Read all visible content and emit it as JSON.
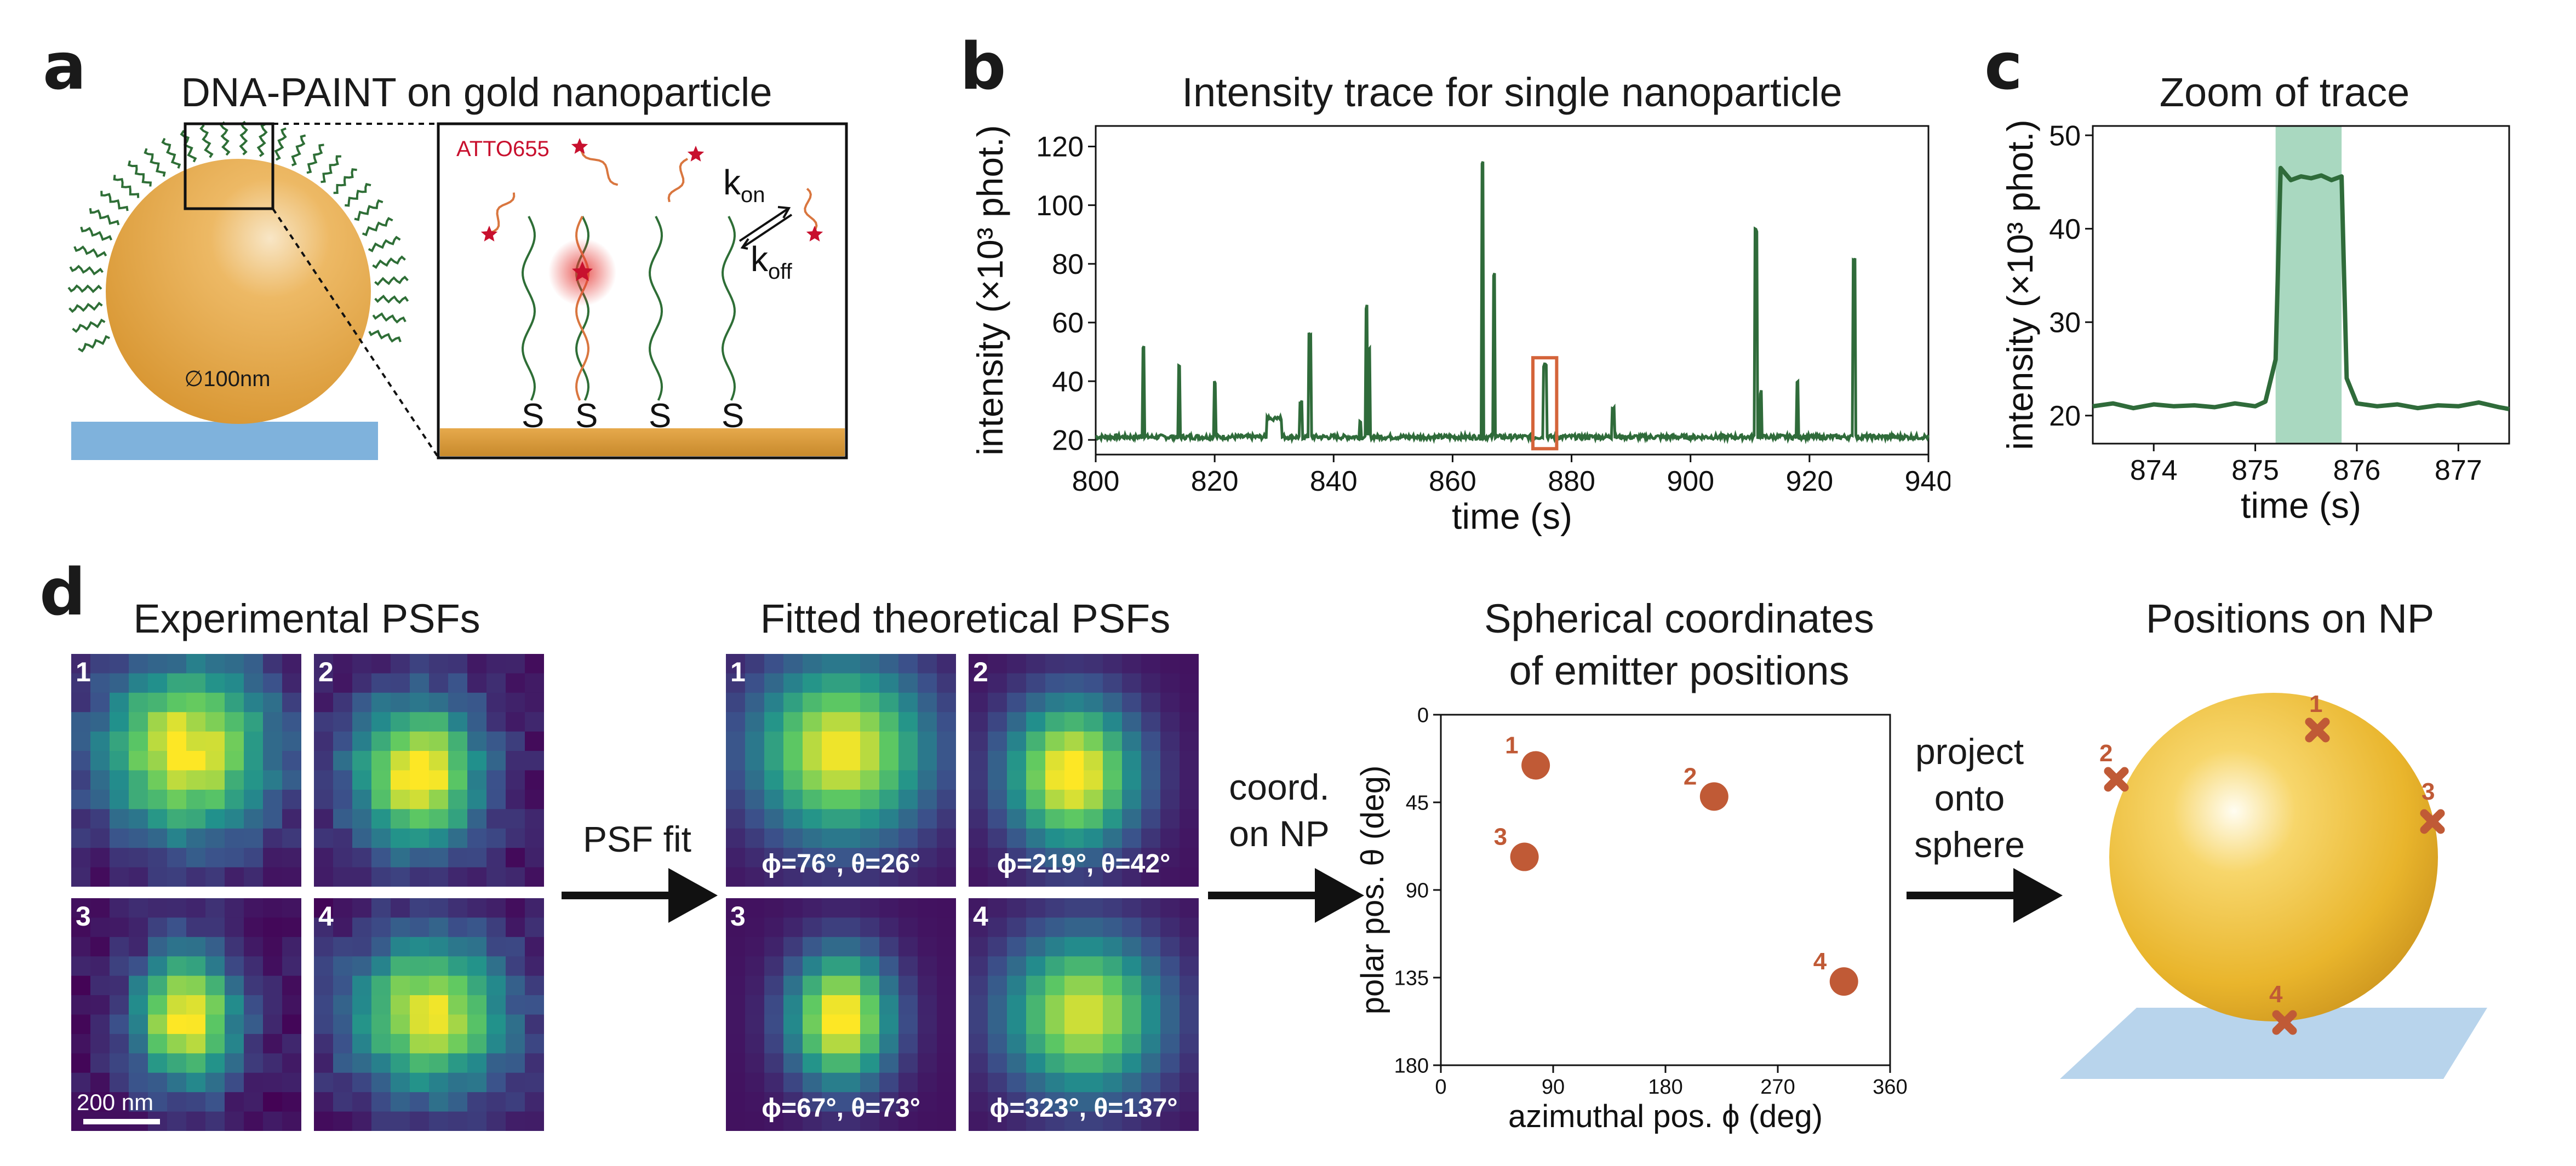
{
  "panel_labels": {
    "a": "a",
    "b": "b",
    "c": "c",
    "d": "d"
  },
  "panel_a": {
    "title": "DNA-PAINT on gold nanoparticle",
    "diameter_label": "∅100nm",
    "dye_label": "ATTO655",
    "k_on": "k",
    "k_on_sub": "on",
    "k_off": "k",
    "k_off_sub": "off",
    "anchor_label": "S",
    "colors": {
      "gold": "#E3A03A",
      "substrate": "#7FB2DC",
      "dna": "#2E6E36",
      "imager": "#D9763F",
      "dye": "#C8102E"
    }
  },
  "panel_b": {
    "title": "Intensity trace for single nanoparticle",
    "chart_data": {
      "type": "line",
      "title": "Intensity trace for single nanoparticle",
      "xlabel": "time (s)",
      "ylabel": "intensity (×10³ phot.)",
      "xlim": [
        800,
        940
      ],
      "ylim": [
        15,
        127
      ],
      "xticks": [
        800,
        820,
        840,
        860,
        880,
        900,
        920,
        940
      ],
      "yticks": [
        20,
        40,
        60,
        80,
        100,
        120
      ],
      "baseline": 21,
      "series": [
        {
          "color": "#2F6B3A",
          "events": [
            {
              "t": 808,
              "peak": 52
            },
            {
              "t": 814,
              "peak": 46
            },
            {
              "t": 820,
              "peak": 40
            },
            {
              "t": 830,
              "peak": 28,
              "width": 2.5
            },
            {
              "t": 834.5,
              "peak": 34
            },
            {
              "t": 836,
              "peak": 57
            },
            {
              "t": 844.5,
              "peak": 27
            },
            {
              "t": 845.5,
              "peak": 66
            },
            {
              "t": 846,
              "peak": 52
            },
            {
              "t": 865,
              "peak": 115
            },
            {
              "t": 867,
              "peak": 77
            },
            {
              "t": 875.5,
              "peak": 46,
              "width": 0.6
            },
            {
              "t": 887,
              "peak": 31
            },
            {
              "t": 911,
              "peak": 92
            },
            {
              "t": 911.8,
              "peak": 37
            },
            {
              "t": 918,
              "peak": 40
            },
            {
              "t": 927.5,
              "peak": 82
            }
          ]
        }
      ],
      "highlight_box": {
        "x": [
          873.5,
          877.5
        ],
        "y": [
          17,
          48
        ],
        "color": "#D4643A"
      }
    }
  },
  "panel_c": {
    "title": "Zoom of trace",
    "chart_data": {
      "type": "line",
      "title": "Zoom of trace",
      "xlabel": "time (s)",
      "ylabel": "intensity (×10³ phot.)",
      "xlim": [
        873.4,
        877.5
      ],
      "ylim": [
        17,
        51
      ],
      "xticks": [
        874,
        875,
        876,
        877
      ],
      "yticks": [
        20,
        30,
        40,
        50
      ],
      "x": [
        873.4,
        873.6,
        873.8,
        874.0,
        874.2,
        874.4,
        874.6,
        874.8,
        875.0,
        875.1,
        875.2,
        875.25,
        875.35,
        875.45,
        875.55,
        875.65,
        875.75,
        875.85,
        875.9,
        876.0,
        876.2,
        876.4,
        876.6,
        876.8,
        877.0,
        877.2,
        877.4,
        877.5
      ],
      "y": [
        21,
        21.3,
        20.8,
        21.2,
        21.0,
        21.1,
        20.9,
        21.3,
        21.0,
        21.5,
        26,
        46.5,
        45.2,
        45.6,
        45.4,
        45.7,
        45.2,
        45.6,
        24,
        21.3,
        21.0,
        21.2,
        20.8,
        21.1,
        21.0,
        21.4,
        20.9,
        20.7
      ],
      "shaded_x": [
        875.2,
        875.85
      ],
      "line_color": "#2F6B3A",
      "shade_color": "#A9D8C0"
    }
  },
  "panel_d": {
    "exp_title": "Experimental PSFs",
    "fit_title": "Fitted theoretical PSFs",
    "sph_title_1": "Spherical coordinates",
    "sph_title_2": "of emitter positions",
    "np_title": "Positions on NP",
    "psf_fit_label": "PSF fit",
    "coord_label_1": "coord.",
    "coord_label_2": "on NP",
    "project_label_1": "project",
    "project_label_2": "onto",
    "project_label_3": "sphere",
    "scale_bar": "200 nm",
    "tile_numbers": [
      "1",
      "2",
      "3",
      "4"
    ],
    "fit_captions": [
      "ϕ=76°, θ=26°",
      "ϕ=219°, θ=42°",
      "ϕ=67°, θ=73°",
      "ϕ=323°, θ=137°"
    ],
    "chart_data": {
      "type": "scatter",
      "title": "Spherical coordinates of emitter positions",
      "xlabel": "azimuthal pos. ϕ (deg)",
      "ylabel": "polar pos. θ (deg)",
      "xlim": [
        0,
        360
      ],
      "ylim": [
        180,
        0
      ],
      "xticks": [
        0,
        90,
        180,
        270,
        360
      ],
      "yticks": [
        0,
        45,
        90,
        135,
        180
      ],
      "points": [
        {
          "label": "1",
          "x": 76,
          "y": 26
        },
        {
          "label": "2",
          "x": 219,
          "y": 42
        },
        {
          "label": "3",
          "x": 67,
          "y": 73
        },
        {
          "label": "4",
          "x": 323,
          "y": 137
        }
      ],
      "color": "#C05A36"
    },
    "np_markers": [
      "1",
      "2",
      "3",
      "4"
    ]
  }
}
